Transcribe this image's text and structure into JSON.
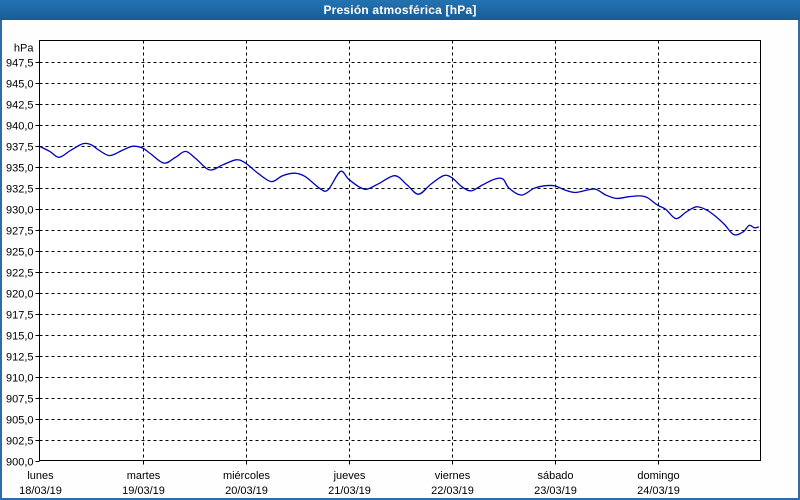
{
  "window": {
    "title": "Presión atmosférica [hPa]"
  },
  "colors": {
    "titlebar_bg": "#1e6ba7",
    "titlebar_text": "#ffffff",
    "window_border": "#2e6ca3",
    "window_bg": "#fdfefd",
    "plot_bg": "#ffffff",
    "plot_border": "#000000",
    "grid": "#000000",
    "line": "#0000bf",
    "label_text": "#000000"
  },
  "chart_data": {
    "type": "line",
    "title": "Presión atmosférica [hPa]",
    "y_unit": "hPa",
    "ylim": [
      900,
      950
    ],
    "y_tick_step": 2.5,
    "grid": "dashed",
    "legend": "none",
    "y_tick_values": [
      947.5,
      945,
      942.5,
      940,
      937.5,
      935,
      932.5,
      930,
      927.5,
      925,
      922.5,
      920,
      917.5,
      915,
      912.5,
      910,
      907.5,
      905,
      902.5,
      900
    ],
    "y_tick_labels": [
      "947,5",
      "945,0",
      "942,5",
      "940,0",
      "937,5",
      "935,0",
      "932,5",
      "930,0",
      "927,5",
      "925,0",
      "922,5",
      "920,0",
      "917,5",
      "915,0",
      "912,5",
      "910,0",
      "907,5",
      "905,0",
      "902,5",
      "900,0"
    ],
    "x_categories": [
      {
        "name": "lunes",
        "date": "18/03/19"
      },
      {
        "name": "martes",
        "date": "19/03/19"
      },
      {
        "name": "miércoles",
        "date": "20/03/19"
      },
      {
        "name": "jueves",
        "date": "21/03/19"
      },
      {
        "name": "viernes",
        "date": "22/03/19"
      },
      {
        "name": "sábado",
        "date": "23/03/19"
      },
      {
        "name": "domingo",
        "date": "24/03/19"
      }
    ],
    "series": [
      {
        "unit": "hPa",
        "x_unit": "days_from_start",
        "points": [
          [
            0.0,
            937.4
          ],
          [
            0.1,
            936.8
          ],
          [
            0.19,
            936.1
          ],
          [
            0.3,
            936.9
          ],
          [
            0.42,
            937.7
          ],
          [
            0.5,
            937.6
          ],
          [
            0.57,
            937.0
          ],
          [
            0.68,
            936.3
          ],
          [
            0.8,
            936.9
          ],
          [
            0.9,
            937.4
          ],
          [
            1.0,
            937.2
          ],
          [
            1.08,
            936.5
          ],
          [
            1.21,
            935.4
          ],
          [
            1.32,
            936.1
          ],
          [
            1.42,
            936.8
          ],
          [
            1.52,
            935.9
          ],
          [
            1.65,
            934.6
          ],
          [
            1.78,
            935.2
          ],
          [
            1.91,
            935.8
          ],
          [
            2.0,
            935.4
          ],
          [
            2.12,
            934.2
          ],
          [
            2.25,
            933.2
          ],
          [
            2.36,
            933.9
          ],
          [
            2.48,
            934.2
          ],
          [
            2.58,
            933.8
          ],
          [
            2.72,
            932.4
          ],
          [
            2.8,
            932.2
          ],
          [
            2.92,
            934.4
          ],
          [
            3.0,
            933.5
          ],
          [
            3.1,
            932.6
          ],
          [
            3.18,
            932.3
          ],
          [
            3.3,
            933.0
          ],
          [
            3.45,
            933.9
          ],
          [
            3.57,
            932.8
          ],
          [
            3.68,
            931.7
          ],
          [
            3.8,
            932.9
          ],
          [
            3.92,
            933.9
          ],
          [
            4.0,
            933.7
          ],
          [
            4.1,
            932.6
          ],
          [
            4.19,
            932.1
          ],
          [
            4.3,
            932.8
          ],
          [
            4.42,
            933.5
          ],
          [
            4.5,
            933.5
          ],
          [
            4.56,
            932.4
          ],
          [
            4.68,
            931.6
          ],
          [
            4.8,
            932.4
          ],
          [
            4.9,
            932.7
          ],
          [
            5.0,
            932.7
          ],
          [
            5.1,
            932.2
          ],
          [
            5.2,
            931.9
          ],
          [
            5.32,
            932.2
          ],
          [
            5.4,
            932.3
          ],
          [
            5.5,
            931.6
          ],
          [
            5.6,
            931.2
          ],
          [
            5.72,
            931.4
          ],
          [
            5.82,
            931.5
          ],
          [
            5.9,
            931.3
          ],
          [
            6.0,
            930.4
          ],
          [
            6.08,
            929.9
          ],
          [
            6.18,
            928.8
          ],
          [
            6.28,
            929.6
          ],
          [
            6.38,
            930.2
          ],
          [
            6.48,
            929.8
          ],
          [
            6.57,
            929.0
          ],
          [
            6.65,
            928.1
          ],
          [
            6.74,
            926.9
          ],
          [
            6.83,
            927.2
          ],
          [
            6.89,
            928.0
          ],
          [
            6.94,
            927.7
          ],
          [
            6.98,
            927.8
          ]
        ]
      }
    ]
  }
}
